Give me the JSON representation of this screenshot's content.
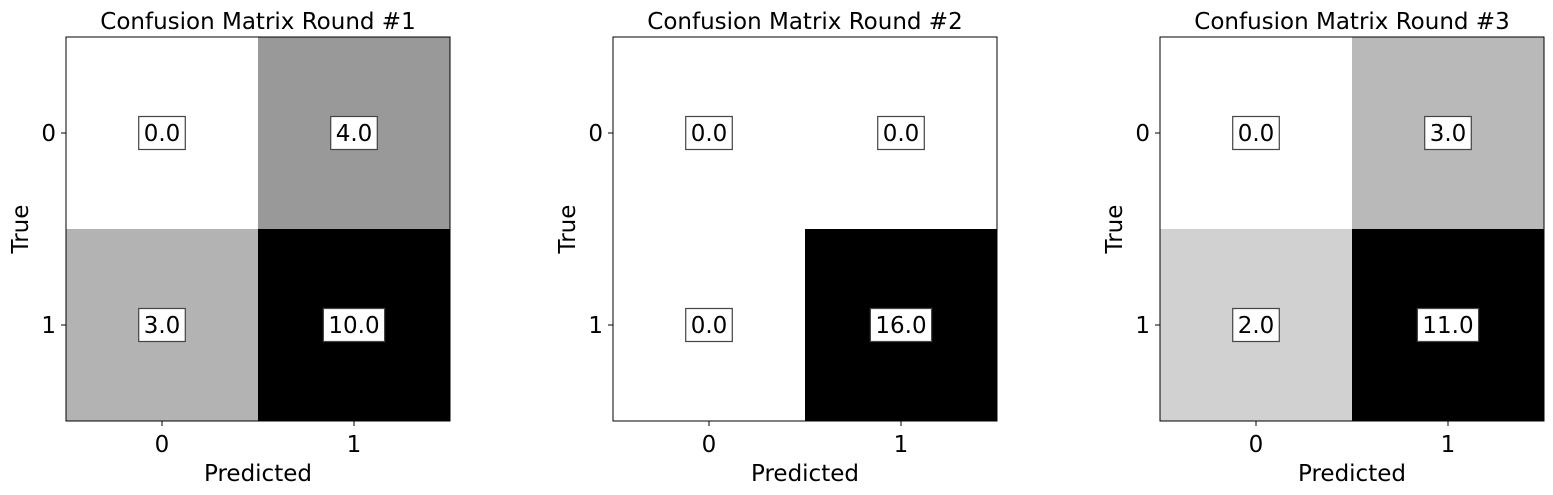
{
  "chart_data": [
    {
      "type": "heatmap",
      "title": "Confusion Matrix Round #1",
      "xlabel": "Predicted",
      "ylabel": "True",
      "x_ticks": [
        "0",
        "1"
      ],
      "y_ticks": [
        "0",
        "1"
      ],
      "values": [
        [
          0.0,
          4.0
        ],
        [
          3.0,
          10.0
        ]
      ],
      "value_labels": [
        [
          "0.0",
          "4.0"
        ],
        [
          "3.0",
          "10.0"
        ]
      ],
      "colormap": "gray_r",
      "vmin": 0.0,
      "vmax": 10.0
    },
    {
      "type": "heatmap",
      "title": "Confusion Matrix Round #2",
      "xlabel": "Predicted",
      "ylabel": "True",
      "x_ticks": [
        "0",
        "1"
      ],
      "y_ticks": [
        "0",
        "1"
      ],
      "values": [
        [
          0.0,
          0.0
        ],
        [
          0.0,
          16.0
        ]
      ],
      "value_labels": [
        [
          "0.0",
          "0.0"
        ],
        [
          "0.0",
          "16.0"
        ]
      ],
      "colormap": "gray_r",
      "vmin": 0.0,
      "vmax": 16.0
    },
    {
      "type": "heatmap",
      "title": "Confusion Matrix Round #3",
      "xlabel": "Predicted",
      "ylabel": "True",
      "x_ticks": [
        "0",
        "1"
      ],
      "y_ticks": [
        "0",
        "1"
      ],
      "values": [
        [
          0.0,
          3.0
        ],
        [
          2.0,
          11.0
        ]
      ],
      "value_labels": [
        [
          "0.0",
          "3.0"
        ],
        [
          "2.0",
          "11.0"
        ]
      ],
      "colormap": "gray_r",
      "vmin": 0.0,
      "vmax": 11.0
    }
  ]
}
